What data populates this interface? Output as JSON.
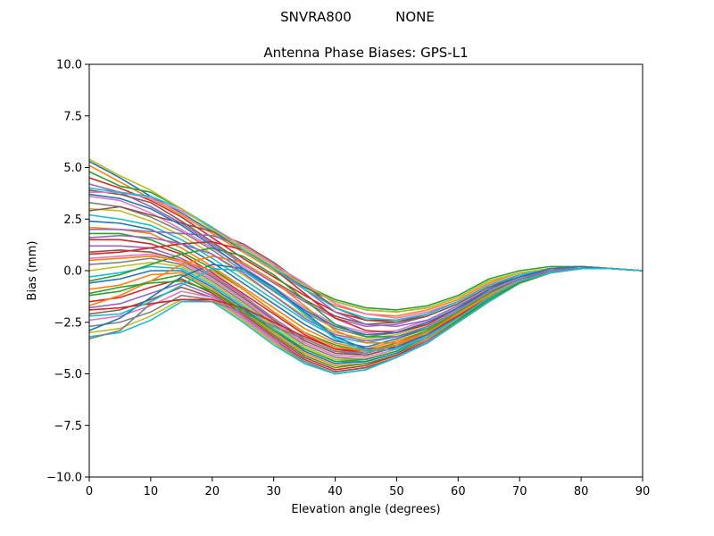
{
  "figure": {
    "suptitle_left": "SNVRA800",
    "suptitle_right": "NONE"
  },
  "chart_data": {
    "type": "line",
    "title": "Antenna Phase Biases: GPS-L1",
    "xlabel": "Elevation angle (degrees)",
    "ylabel": "Bias (mm)",
    "xlim": [
      0,
      90
    ],
    "ylim": [
      -10,
      10
    ],
    "xticks": [
      "0",
      "10",
      "20",
      "30",
      "40",
      "50",
      "60",
      "70",
      "80",
      "90"
    ],
    "yticks": [
      "−10.0",
      "−7.5",
      "−5.0",
      "−2.5",
      "0.0",
      "2.5",
      "5.0",
      "7.5",
      "10.0"
    ],
    "grid": false,
    "x": [
      0,
      5,
      10,
      15,
      20,
      25,
      30,
      35,
      40,
      45,
      50,
      55,
      60,
      65,
      70,
      75,
      80,
      85,
      90
    ],
    "series": [
      {
        "color": "#1f77b4",
        "values": [
          5.3,
          4.5,
          3.6,
          2.8,
          1.9,
          1.0,
          0.1,
          -0.8,
          -1.5,
          -1.9,
          -2.0,
          -1.8,
          -1.3,
          -0.5,
          -0.1,
          0.1,
          0.2,
          0.1,
          0.0
        ]
      },
      {
        "color": "#ff7f0e",
        "values": [
          5.1,
          4.3,
          3.5,
          2.7,
          1.8,
          0.9,
          0.0,
          -0.9,
          -1.7,
          -2.1,
          -2.2,
          -1.9,
          -1.4,
          -0.6,
          -0.1,
          0.1,
          0.2,
          0.1,
          0.0
        ]
      },
      {
        "color": "#2ca02c",
        "values": [
          4.8,
          4.1,
          3.8,
          3.0,
          2.0,
          1.0,
          0.2,
          -0.7,
          -1.4,
          -1.8,
          -1.9,
          -1.7,
          -1.2,
          -0.4,
          0.0,
          0.2,
          0.2,
          0.1,
          0.0
        ]
      },
      {
        "color": "#d62728",
        "values": [
          4.5,
          4.0,
          3.4,
          2.6,
          1.6,
          0.6,
          -0.3,
          -1.2,
          -2.0,
          -2.4,
          -2.4,
          -2.1,
          -1.5,
          -0.7,
          -0.2,
          0.1,
          0.2,
          0.1,
          0.0
        ]
      },
      {
        "color": "#9467bd",
        "values": [
          4.2,
          3.8,
          3.1,
          2.3,
          1.3,
          0.3,
          -0.6,
          -1.5,
          -2.3,
          -2.7,
          -2.6,
          -2.2,
          -1.6,
          -0.8,
          -0.2,
          0.1,
          0.2,
          0.1,
          0.0
        ]
      },
      {
        "color": "#8c564b",
        "values": [
          3.9,
          3.7,
          3.3,
          2.4,
          1.4,
          0.4,
          -0.5,
          -1.4,
          -2.2,
          -2.6,
          -2.5,
          -2.1,
          -1.5,
          -0.7,
          -0.2,
          0.1,
          0.2,
          0.1,
          0.0
        ]
      },
      {
        "color": "#e377c2",
        "values": [
          3.6,
          3.4,
          2.8,
          2.0,
          1.1,
          0.2,
          -0.8,
          -1.8,
          -2.6,
          -3.0,
          -2.9,
          -2.4,
          -1.7,
          -0.9,
          -0.3,
          0.1,
          0.2,
          0.1,
          0.0
        ]
      },
      {
        "color": "#7f7f7f",
        "values": [
          3.3,
          3.1,
          2.6,
          1.9,
          1.0,
          0.0,
          -1.0,
          -2.0,
          -2.8,
          -3.2,
          -3.0,
          -2.5,
          -1.8,
          -0.9,
          -0.3,
          0.1,
          0.2,
          0.1,
          0.0
        ]
      },
      {
        "color": "#bcbd22",
        "values": [
          3.0,
          2.9,
          2.4,
          1.7,
          0.8,
          -0.2,
          -1.2,
          -2.2,
          -3.0,
          -3.3,
          -3.1,
          -2.6,
          -1.8,
          -1.0,
          -0.4,
          0.0,
          0.2,
          0.1,
          0.0
        ]
      },
      {
        "color": "#17becf",
        "values": [
          2.7,
          2.5,
          2.2,
          1.5,
          0.6,
          -0.4,
          -1.4,
          -2.4,
          -3.2,
          -3.5,
          -3.2,
          -2.7,
          -1.9,
          -1.0,
          -0.4,
          0.0,
          0.1,
          0.1,
          0.0
        ]
      },
      {
        "color": "#1f77b4",
        "values": [
          2.4,
          2.3,
          2.0,
          1.3,
          0.4,
          -0.6,
          -1.6,
          -2.6,
          -3.4,
          -3.7,
          -3.3,
          -2.8,
          -2.0,
          -1.1,
          -0.4,
          0.0,
          0.1,
          0.1,
          0.0
        ]
      },
      {
        "color": "#ff7f0e",
        "values": [
          2.1,
          2.0,
          1.8,
          1.1,
          0.2,
          -0.8,
          -1.8,
          -2.8,
          -3.5,
          -3.8,
          -3.4,
          -2.9,
          -2.0,
          -1.1,
          -0.4,
          0.0,
          0.1,
          0.1,
          0.0
        ]
      },
      {
        "color": "#2ca02c",
        "values": [
          1.8,
          1.8,
          1.5,
          0.9,
          0.1,
          -0.9,
          -2.0,
          -3.0,
          -3.6,
          -3.9,
          -3.5,
          -2.9,
          -2.1,
          -1.2,
          -0.5,
          0.0,
          0.1,
          0.1,
          0.0
        ]
      },
      {
        "color": "#d62728",
        "values": [
          1.5,
          1.5,
          1.3,
          0.8,
          -0.1,
          -1.1,
          -2.1,
          -3.1,
          -3.8,
          -4.0,
          -3.6,
          -3.0,
          -2.1,
          -1.2,
          -0.5,
          -0.1,
          0.1,
          0.1,
          0.0
        ]
      },
      {
        "color": "#9467bd",
        "values": [
          1.2,
          1.2,
          1.1,
          0.6,
          -0.2,
          -1.2,
          -2.3,
          -3.3,
          -3.9,
          -4.1,
          -3.7,
          -3.0,
          -2.2,
          -1.3,
          -0.5,
          -0.1,
          0.1,
          0.1,
          0.0
        ]
      },
      {
        "color": "#8c564b",
        "values": [
          0.9,
          1.0,
          0.9,
          0.5,
          -0.3,
          -1.3,
          -2.4,
          -3.4,
          -4.0,
          -4.1,
          -3.7,
          -3.1,
          -2.2,
          -1.3,
          -0.5,
          -0.1,
          0.1,
          0.1,
          0.0
        ]
      },
      {
        "color": "#e377c2",
        "values": [
          0.6,
          0.7,
          0.8,
          0.4,
          -0.4,
          -1.4,
          -2.5,
          -3.5,
          -4.1,
          -4.2,
          -3.8,
          -3.1,
          -2.3,
          -1.3,
          -0.6,
          -0.1,
          0.1,
          0.1,
          0.0
        ]
      },
      {
        "color": "#7f7f7f",
        "values": [
          0.3,
          0.4,
          0.6,
          0.3,
          -0.5,
          -1.5,
          -2.6,
          -3.6,
          -4.2,
          -4.3,
          -3.9,
          -3.2,
          -2.3,
          -1.4,
          -0.6,
          -0.1,
          0.1,
          0.1,
          0.0
        ]
      },
      {
        "color": "#bcbd22",
        "values": [
          0.0,
          0.2,
          0.4,
          0.2,
          -0.6,
          -1.6,
          -2.7,
          -3.7,
          -4.3,
          -4.3,
          -3.9,
          -3.2,
          -2.3,
          -1.4,
          -0.6,
          -0.1,
          0.1,
          0.1,
          0.0
        ]
      },
      {
        "color": "#17becf",
        "values": [
          -0.3,
          -0.1,
          0.2,
          0.1,
          -0.7,
          -1.7,
          -2.8,
          -3.8,
          -4.4,
          -4.4,
          -4.0,
          -3.3,
          -2.4,
          -1.4,
          -0.6,
          -0.1,
          0.1,
          0.1,
          0.0
        ]
      },
      {
        "color": "#1f77b4",
        "values": [
          -0.6,
          -0.4,
          0.0,
          0.0,
          -0.8,
          -1.8,
          -2.9,
          -3.9,
          -4.5,
          -4.4,
          -4.0,
          -3.3,
          -2.4,
          -1.4,
          -0.6,
          -0.1,
          0.1,
          0.1,
          0.0
        ]
      },
      {
        "color": "#ff7f0e",
        "values": [
          -0.9,
          -0.7,
          -0.2,
          -0.1,
          -0.9,
          -1.9,
          -3.0,
          -4.0,
          -4.6,
          -4.5,
          -4.1,
          -3.3,
          -2.4,
          -1.5,
          -0.6,
          -0.1,
          0.1,
          0.1,
          0.0
        ]
      },
      {
        "color": "#2ca02c",
        "values": [
          -1.2,
          -1.0,
          -0.5,
          -0.2,
          -1.0,
          -2.0,
          -3.1,
          -4.1,
          -4.7,
          -4.5,
          -4.1,
          -3.4,
          -2.4,
          -1.5,
          -0.6,
          -0.1,
          0.1,
          0.1,
          0.0
        ]
      },
      {
        "color": "#d62728",
        "values": [
          -1.5,
          -1.3,
          -0.8,
          -0.4,
          -1.1,
          -2.1,
          -3.2,
          -4.2,
          -4.8,
          -4.6,
          -4.1,
          -3.4,
          -2.5,
          -1.5,
          -0.6,
          -0.1,
          0.1,
          0.1,
          0.0
        ]
      },
      {
        "color": "#9467bd",
        "values": [
          -1.8,
          -1.6,
          -1.1,
          -0.6,
          -1.2,
          -2.2,
          -3.3,
          -4.3,
          -4.9,
          -4.7,
          -4.2,
          -3.4,
          -2.5,
          -1.5,
          -0.6,
          -0.1,
          0.1,
          0.1,
          0.0
        ]
      },
      {
        "color": "#8c564b",
        "values": [
          -2.1,
          -1.9,
          -1.4,
          -0.8,
          -1.3,
          -2.3,
          -3.4,
          -4.3,
          -4.9,
          -4.7,
          -4.2,
          -3.5,
          -2.5,
          -1.5,
          -0.6,
          -0.1,
          0.1,
          0.1,
          0.0
        ]
      },
      {
        "color": "#e377c2",
        "values": [
          -2.4,
          -2.2,
          -1.7,
          -1.0,
          -1.3,
          -2.3,
          -3.4,
          -4.4,
          -5.0,
          -4.8,
          -4.2,
          -3.5,
          -2.5,
          -1.5,
          -0.6,
          -0.1,
          0.1,
          0.1,
          0.0
        ]
      },
      {
        "color": "#7f7f7f",
        "values": [
          -2.7,
          -2.5,
          -2.0,
          -1.2,
          -1.4,
          -2.4,
          -3.5,
          -4.4,
          -5.0,
          -4.8,
          -4.2,
          -3.5,
          -2.5,
          -1.5,
          -0.6,
          -0.1,
          0.1,
          0.1,
          0.0
        ]
      },
      {
        "color": "#bcbd22",
        "values": [
          -3.0,
          -2.8,
          -2.2,
          -1.4,
          -1.4,
          -2.4,
          -3.5,
          -4.5,
          -5.0,
          -4.8,
          -4.2,
          -3.5,
          -2.5,
          -1.5,
          -0.6,
          -0.1,
          0.1,
          0.1,
          0.0
        ]
      },
      {
        "color": "#17becf",
        "values": [
          -3.2,
          -3.0,
          -2.4,
          -1.5,
          -1.5,
          -2.5,
          -3.6,
          -4.5,
          -5.0,
          -4.8,
          -4.2,
          -3.5,
          -2.5,
          -1.5,
          -0.6,
          -0.1,
          0.1,
          0.1,
          0.0
        ]
      },
      {
        "color": "#1f77b4",
        "values": [
          -2.9,
          -2.3,
          -1.3,
          -0.3,
          0.3,
          0.1,
          -0.8,
          -2.0,
          -3.2,
          -3.8,
          -3.7,
          -3.1,
          -2.2,
          -1.3,
          -0.5,
          -0.1,
          0.1,
          0.1,
          0.0
        ]
      },
      {
        "color": "#ff7f0e",
        "values": [
          -1.7,
          -1.2,
          -0.5,
          0.3,
          0.7,
          0.4,
          -0.5,
          -1.7,
          -2.9,
          -3.5,
          -3.5,
          -3.0,
          -2.1,
          -1.2,
          -0.5,
          -0.1,
          0.1,
          0.1,
          0.0
        ]
      },
      {
        "color": "#2ca02c",
        "values": [
          -0.5,
          -0.2,
          0.3,
          0.8,
          1.1,
          0.7,
          -0.2,
          -1.4,
          -2.6,
          -3.2,
          -3.2,
          -2.8,
          -2.0,
          -1.1,
          -0.4,
          0.0,
          0.1,
          0.1,
          0.0
        ]
      },
      {
        "color": "#d62728",
        "values": [
          0.8,
          0.9,
          1.1,
          1.3,
          1.4,
          1.0,
          0.1,
          -1.1,
          -2.3,
          -2.9,
          -3.0,
          -2.6,
          -1.8,
          -1.0,
          -0.4,
          0.0,
          0.2,
          0.1,
          0.0
        ]
      },
      {
        "color": "#9467bd",
        "values": [
          2.0,
          2.0,
          1.9,
          1.8,
          1.7,
          1.2,
          0.3,
          -0.9,
          -2.0,
          -2.6,
          -2.7,
          -2.4,
          -1.7,
          -0.9,
          -0.3,
          0.0,
          0.2,
          0.1,
          0.0
        ]
      },
      {
        "color": "#8c564b",
        "values": [
          2.9,
          3.1,
          2.7,
          2.3,
          1.9,
          1.3,
          0.4,
          -0.7,
          -1.8,
          -2.4,
          -2.5,
          -2.2,
          -1.6,
          -0.8,
          -0.3,
          0.1,
          0.2,
          0.1,
          0.0
        ]
      },
      {
        "color": "#e377c2",
        "values": [
          3.8,
          3.8,
          3.5,
          2.9,
          2.1,
          1.2,
          0.3,
          -0.6,
          -1.6,
          -2.1,
          -2.3,
          -2.0,
          -1.5,
          -0.7,
          -0.2,
          0.1,
          0.2,
          0.1,
          0.0
        ]
      },
      {
        "color": "#17becf",
        "values": [
          4.0,
          3.8,
          3.6,
          3.0,
          2.1,
          1.0,
          0.1,
          -0.9,
          -1.8,
          -2.3,
          -2.4,
          -2.1,
          -1.5,
          -0.7,
          -0.2,
          0.1,
          0.2,
          0.1,
          0.0
        ]
      },
      {
        "color": "#bcbd22",
        "values": [
          5.4,
          4.6,
          3.9,
          3.0,
          2.0,
          1.1,
          0.2,
          -0.7,
          -1.5,
          -1.9,
          -2.0,
          -1.8,
          -1.3,
          -0.5,
          -0.1,
          0.1,
          0.2,
          0.1,
          0.0
        ]
      },
      {
        "color": "#7f7f7f",
        "values": [
          -3.3,
          -2.9,
          -1.6,
          -1.4,
          -1.5,
          -2.0,
          -2.7,
          -3.3,
          -3.9,
          -4.0,
          -3.6,
          -3.0,
          -2.2,
          -1.3,
          -0.5,
          -0.1,
          0.1,
          0.1,
          0.0
        ]
      },
      {
        "color": "#d62728",
        "values": [
          -1.9,
          -1.8,
          -1.6,
          -1.4,
          -1.4,
          -1.8,
          -2.5,
          -3.2,
          -3.8,
          -3.9,
          -3.6,
          -3.0,
          -2.2,
          -1.3,
          -0.5,
          -0.1,
          0.1,
          0.1,
          0.0
        ]
      },
      {
        "color": "#1f77b4",
        "values": [
          3.7,
          3.5,
          3.0,
          2.2,
          1.2,
          0.1,
          -0.9,
          -1.9,
          -2.7,
          -3.1,
          -3.0,
          -2.5,
          -1.8,
          -0.9,
          -0.3,
          0.1,
          0.2,
          0.1,
          0.0
        ]
      },
      {
        "color": "#2ca02c",
        "values": [
          -1.1,
          -0.8,
          -0.6,
          -0.5,
          -1.0,
          -1.9,
          -2.9,
          -3.8,
          -4.4,
          -4.3,
          -3.9,
          -3.2,
          -2.3,
          -1.4,
          -0.6,
          -0.1,
          0.1,
          0.1,
          0.0
        ]
      },
      {
        "color": "#ff7f0e",
        "values": [
          0.5,
          0.6,
          0.7,
          0.5,
          0.0,
          -0.9,
          -2.0,
          -3.0,
          -3.7,
          -3.9,
          -3.6,
          -3.0,
          -2.1,
          -1.2,
          -0.5,
          -0.1,
          0.1,
          0.1,
          0.0
        ]
      },
      {
        "color": "#9467bd",
        "values": [
          1.6,
          1.7,
          1.6,
          1.3,
          0.8,
          -0.1,
          -1.2,
          -2.3,
          -3.1,
          -3.4,
          -3.2,
          -2.7,
          -1.9,
          -1.0,
          -0.4,
          0.0,
          0.1,
          0.1,
          0.0
        ]
      },
      {
        "color": "#17becf",
        "values": [
          -2.2,
          -2.1,
          -1.5,
          -0.7,
          0.1,
          0.0,
          -0.9,
          -2.1,
          -3.3,
          -3.9,
          -3.8,
          -3.2,
          -2.3,
          -1.3,
          -0.5,
          -0.1,
          0.1,
          0.1,
          0.0
        ]
      }
    ]
  }
}
